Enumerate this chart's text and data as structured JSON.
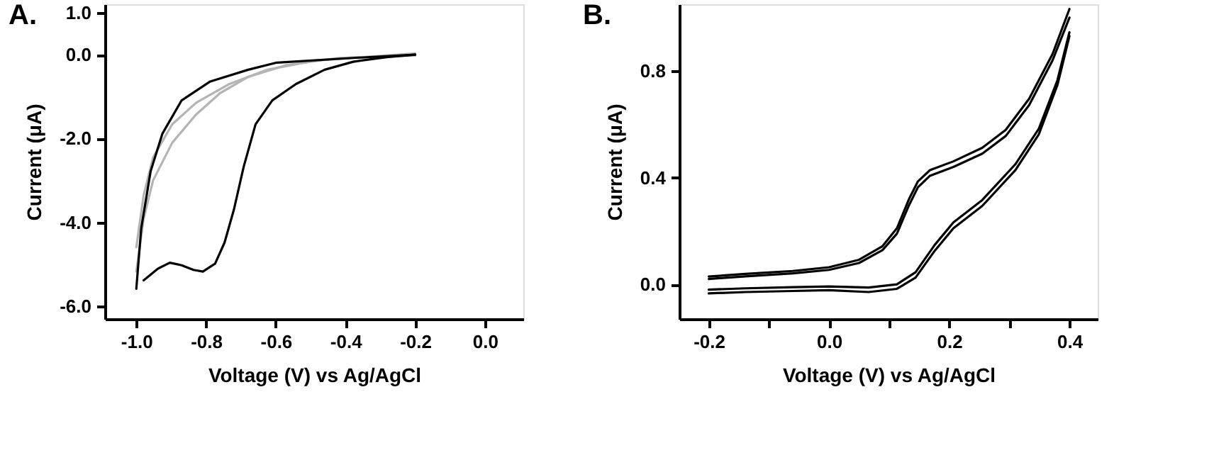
{
  "chart_data": [
    {
      "type": "line",
      "title": "A.",
      "xlabel": "Voltage (V) vs Ag/AgCl",
      "ylabel": "Current (μA)",
      "xlim": [
        -1.09,
        0.11
      ],
      "ylim": [
        -6.3,
        1.2
      ],
      "xticks": [
        {
          "value": -1,
          "label": "-1.0"
        },
        -0.8,
        -0.6,
        -0.4,
        -0.2,
        {
          "value": 0,
          "label": "0.0"
        }
      ],
      "yticks": [
        {
          "value": 1,
          "label": "1.0"
        },
        {
          "value": 0,
          "label": "0.0"
        },
        {
          "value": -2,
          "label": "-2.0"
        },
        {
          "value": -4,
          "label": "-4.0"
        },
        {
          "value": -6,
          "label": "-6.0"
        }
      ],
      "grid": false,
      "series": [
        {
          "color": "#b4b4b4",
          "x": [
            -1.0,
            -0.979,
            -0.952,
            -0.897,
            -0.829,
            -0.76,
            -0.679,
            -0.569,
            -0.419,
            -0.2
          ],
          "values": [
            -5.17,
            -3.91,
            -3.0,
            -2.1,
            -1.43,
            -0.92,
            -0.53,
            -0.25,
            -0.08,
            -0.02
          ]
        },
        {
          "color": "#b4b4b4",
          "x": [
            -1.0,
            -0.979,
            -0.952,
            -0.897,
            -0.829,
            -0.733,
            -0.624,
            -0.487,
            -0.2
          ],
          "values": [
            -4.59,
            -3.35,
            -2.45,
            -1.66,
            -1.15,
            -0.7,
            -0.36,
            -0.14,
            0.03
          ]
        },
        {
          "color": "#000000",
          "x": [
            -1.0,
            -0.986,
            -0.959,
            -0.925,
            -0.87,
            -0.788,
            -0.679,
            -0.597,
            -0.378,
            -0.2
          ],
          "values": [
            -5.58,
            -4.14,
            -2.78,
            -1.88,
            -1.09,
            -0.64,
            -0.36,
            -0.19,
            -0.08,
            0
          ]
        },
        {
          "color": "#000000",
          "x": [
            -0.979,
            -0.938,
            -0.904,
            -0.87,
            -0.836,
            -0.809,
            -0.774,
            -0.747,
            -0.72,
            -0.692,
            -0.658,
            -0.61,
            -0.542,
            -0.46,
            -0.378,
            -0.282,
            -0.2
          ],
          "values": [
            -5.38,
            -5.1,
            -4.96,
            -5.02,
            -5.13,
            -5.17,
            -4.98,
            -4.48,
            -3.69,
            -2.67,
            -1.66,
            -1.09,
            -0.7,
            -0.36,
            -0.17,
            -0.06,
            0
          ]
        }
      ]
    },
    {
      "type": "line",
      "title": "B.",
      "xlabel": "Voltage (V) vs Ag/AgCl",
      "ylabel": "Current (μA)",
      "xlim": [
        -0.249,
        0.447
      ],
      "ylim": [
        -0.13,
        1.05
      ],
      "xticks": [
        -0.2,
        {
          "value": -0.1,
          "label": null
        },
        {
          "value": 0,
          "label": "0.0"
        },
        {
          "value": 0.1,
          "label": null
        },
        0.2,
        {
          "value": 0.3,
          "label": null
        },
        0.4
      ],
      "yticks": [
        {
          "value": 0,
          "label": "0.0"
        },
        0.4,
        0.8
      ],
      "grid": false,
      "series": [
        {
          "color": "#000000",
          "x": [
            -0.2,
            -0.139,
            -0.06,
            0.0,
            0.05,
            0.089,
            0.113,
            0.133,
            0.148,
            0.168,
            0.207,
            0.255,
            0.294,
            0.333,
            0.372,
            0.4
          ],
          "values": [
            0.029,
            0.039,
            0.05,
            0.064,
            0.092,
            0.143,
            0.21,
            0.319,
            0.386,
            0.428,
            0.461,
            0.512,
            0.579,
            0.696,
            0.864,
            1.032
          ]
        },
        {
          "color": "#000000",
          "x": [
            -0.2,
            -0.139,
            -0.06,
            0.0,
            0.05,
            0.089,
            0.113,
            0.133,
            0.148,
            0.168,
            0.207,
            0.255,
            0.294,
            0.333,
            0.372,
            0.4
          ],
          "values": [
            0.02,
            0.03,
            0.041,
            0.054,
            0.08,
            0.128,
            0.19,
            0.296,
            0.364,
            0.407,
            0.44,
            0.49,
            0.556,
            0.672,
            0.84,
            1.0
          ]
        },
        {
          "color": "#000000",
          "x": [
            -0.2,
            -0.139,
            -0.06,
            0.0,
            0.066,
            0.113,
            0.144,
            0.176,
            0.207,
            0.255,
            0.31,
            0.349,
            0.38,
            0.4
          ],
          "values": [
            -0.034,
            -0.029,
            -0.025,
            -0.022,
            -0.029,
            -0.017,
            0.025,
            0.126,
            0.21,
            0.294,
            0.428,
            0.562,
            0.747,
            0.931
          ]
        },
        {
          "color": "#000000",
          "x": [
            -0.2,
            -0.139,
            -0.06,
            0.0,
            0.066,
            0.113,
            0.144,
            0.176,
            0.207,
            0.255,
            0.31,
            0.349,
            0.38,
            0.4
          ],
          "values": [
            -0.02,
            -0.015,
            -0.011,
            -0.008,
            -0.012,
            0.0,
            0.045,
            0.148,
            0.232,
            0.316,
            0.45,
            0.583,
            0.765,
            0.945
          ]
        }
      ]
    }
  ]
}
